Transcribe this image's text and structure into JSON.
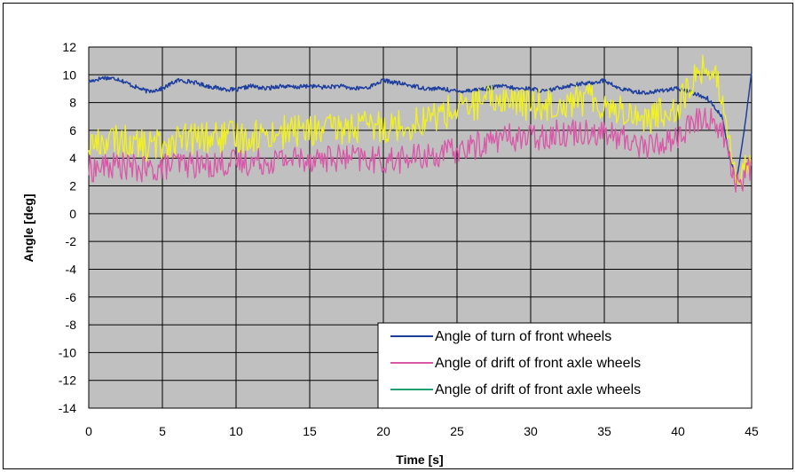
{
  "chart_data": {
    "type": "line",
    "xlabel": "Time [s]",
    "ylabel": "Angle [deg]",
    "xlim": [
      0,
      45
    ],
    "ylim": [
      -14,
      12
    ],
    "xticks": [
      0,
      5,
      10,
      15,
      20,
      25,
      30,
      35,
      40,
      45
    ],
    "yticks": [
      12,
      10,
      8,
      6,
      4,
      2,
      0,
      -2,
      -4,
      -6,
      -8,
      -10,
      -12,
      -14
    ],
    "grid": true,
    "legend_position": "bottom-right",
    "plot_background": "#c0c0c0",
    "series": [
      {
        "name": "Angle of  turn of front wheels",
        "color": "#1f3f9f",
        "x": [
          0,
          1,
          2,
          3,
          4,
          5,
          6,
          7,
          8,
          9,
          10,
          11,
          12,
          13,
          14,
          15,
          16,
          17,
          18,
          19,
          20,
          21,
          22,
          23,
          24,
          25,
          26,
          27,
          28,
          29,
          30,
          31,
          32,
          33,
          34,
          35,
          36,
          37,
          38,
          39,
          40,
          41,
          42,
          43,
          43.5,
          44,
          44.5,
          45
        ],
        "y": [
          9.5,
          9.8,
          9.7,
          9.2,
          8.8,
          9.0,
          9.6,
          9.5,
          9.2,
          9.0,
          8.9,
          9.2,
          9.0,
          9.2,
          9.1,
          9.2,
          9.1,
          9.2,
          9.0,
          9.1,
          9.6,
          9.4,
          9.2,
          9.0,
          9.0,
          8.8,
          8.9,
          9.0,
          9.2,
          9.0,
          9.0,
          8.8,
          9.1,
          9.3,
          9.4,
          9.6,
          9.0,
          8.8,
          8.7,
          8.9,
          9.0,
          8.7,
          8.3,
          7.0,
          4.0,
          2.5,
          6.0,
          10.2
        ]
      },
      {
        "name": "Angle of drift of front axle wheels",
        "color": "#d957a8",
        "x": [
          0,
          2,
          4,
          6,
          8,
          10,
          12,
          14,
          16,
          18,
          20,
          22,
          24,
          26,
          28,
          30,
          32,
          34,
          36,
          38,
          40,
          41,
          42,
          43,
          44,
          45
        ],
        "y": [
          3.2,
          3.5,
          3.1,
          3.6,
          3.5,
          3.7,
          3.8,
          4.0,
          4.0,
          4.0,
          3.8,
          4.0,
          4.3,
          4.8,
          5.5,
          5.5,
          5.8,
          6.0,
          5.5,
          4.8,
          5.5,
          6.5,
          7.0,
          6.0,
          2.0,
          3.5
        ]
      },
      {
        "name": "Angle of drift of front axle wheels",
        "color": "#f2f21e",
        "x": [
          0,
          2,
          4,
          6,
          8,
          10,
          12,
          14,
          16,
          18,
          20,
          22,
          24,
          26,
          28,
          30,
          32,
          34,
          36,
          38,
          40,
          41,
          42,
          43,
          44,
          45
        ],
        "y": [
          5.0,
          5.3,
          4.8,
          5.3,
          5.5,
          5.5,
          5.7,
          6.0,
          6.0,
          6.2,
          6.3,
          6.5,
          7.2,
          7.8,
          8.3,
          7.8,
          8.0,
          8.3,
          7.5,
          6.8,
          7.8,
          9.5,
          10.8,
          8.5,
          2.5,
          3.5
        ]
      }
    ],
    "legend": [
      {
        "label": "Angle of  turn of front wheels",
        "color": "#1f3f9f"
      },
      {
        "label": "Angle of drift of front axle wheels",
        "color": "#d957a8"
      },
      {
        "label": "Angle of drift of front axle wheels",
        "color": "#1f9f6f"
      }
    ]
  }
}
